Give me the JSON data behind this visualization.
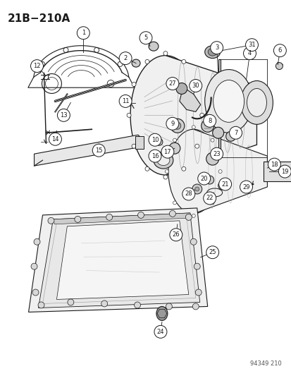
{
  "title": "21B−210A",
  "catalog_number": "94349 210",
  "bg_color": "#ffffff",
  "line_color": "#1a1a1a",
  "fig_width": 4.14,
  "fig_height": 5.33,
  "dpi": 100
}
